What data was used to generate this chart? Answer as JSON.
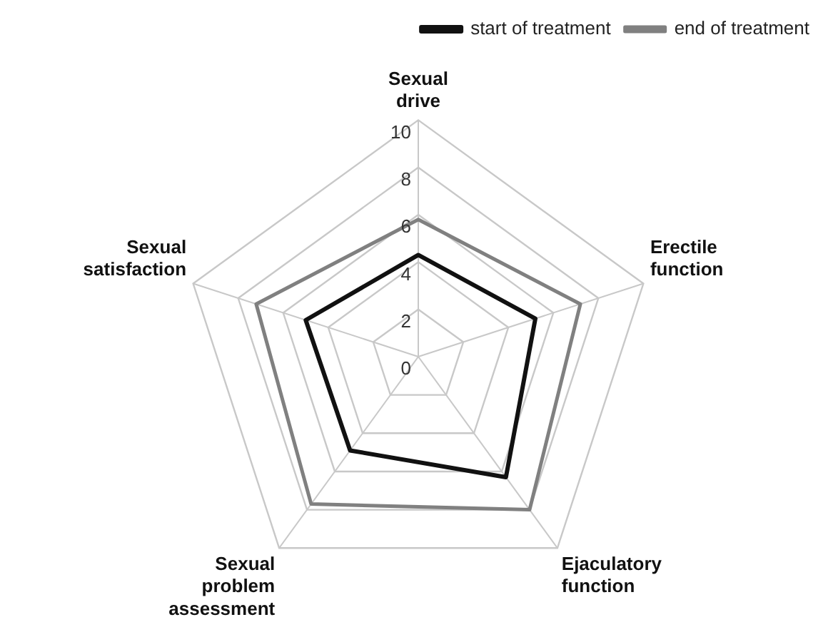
{
  "chart_data": {
    "type": "radar",
    "categories": [
      "Sexual drive",
      "Erectile function",
      "Ejaculatory function",
      "Sexual problem assessment",
      "Sexual satisfaction"
    ],
    "series": [
      {
        "name": "start of treatment",
        "color": "#111111",
        "values": [
          4.3,
          5.2,
          6.3,
          4.9,
          5.0
        ]
      },
      {
        "name": "end of treatment",
        "color": "#808080",
        "values": [
          5.8,
          7.2,
          8.0,
          7.7,
          7.2
        ]
      }
    ],
    "ylim": [
      0,
      10
    ],
    "yticks": [
      0,
      2,
      4,
      6,
      8,
      10
    ],
    "legend": "top right",
    "marker": "none"
  }
}
